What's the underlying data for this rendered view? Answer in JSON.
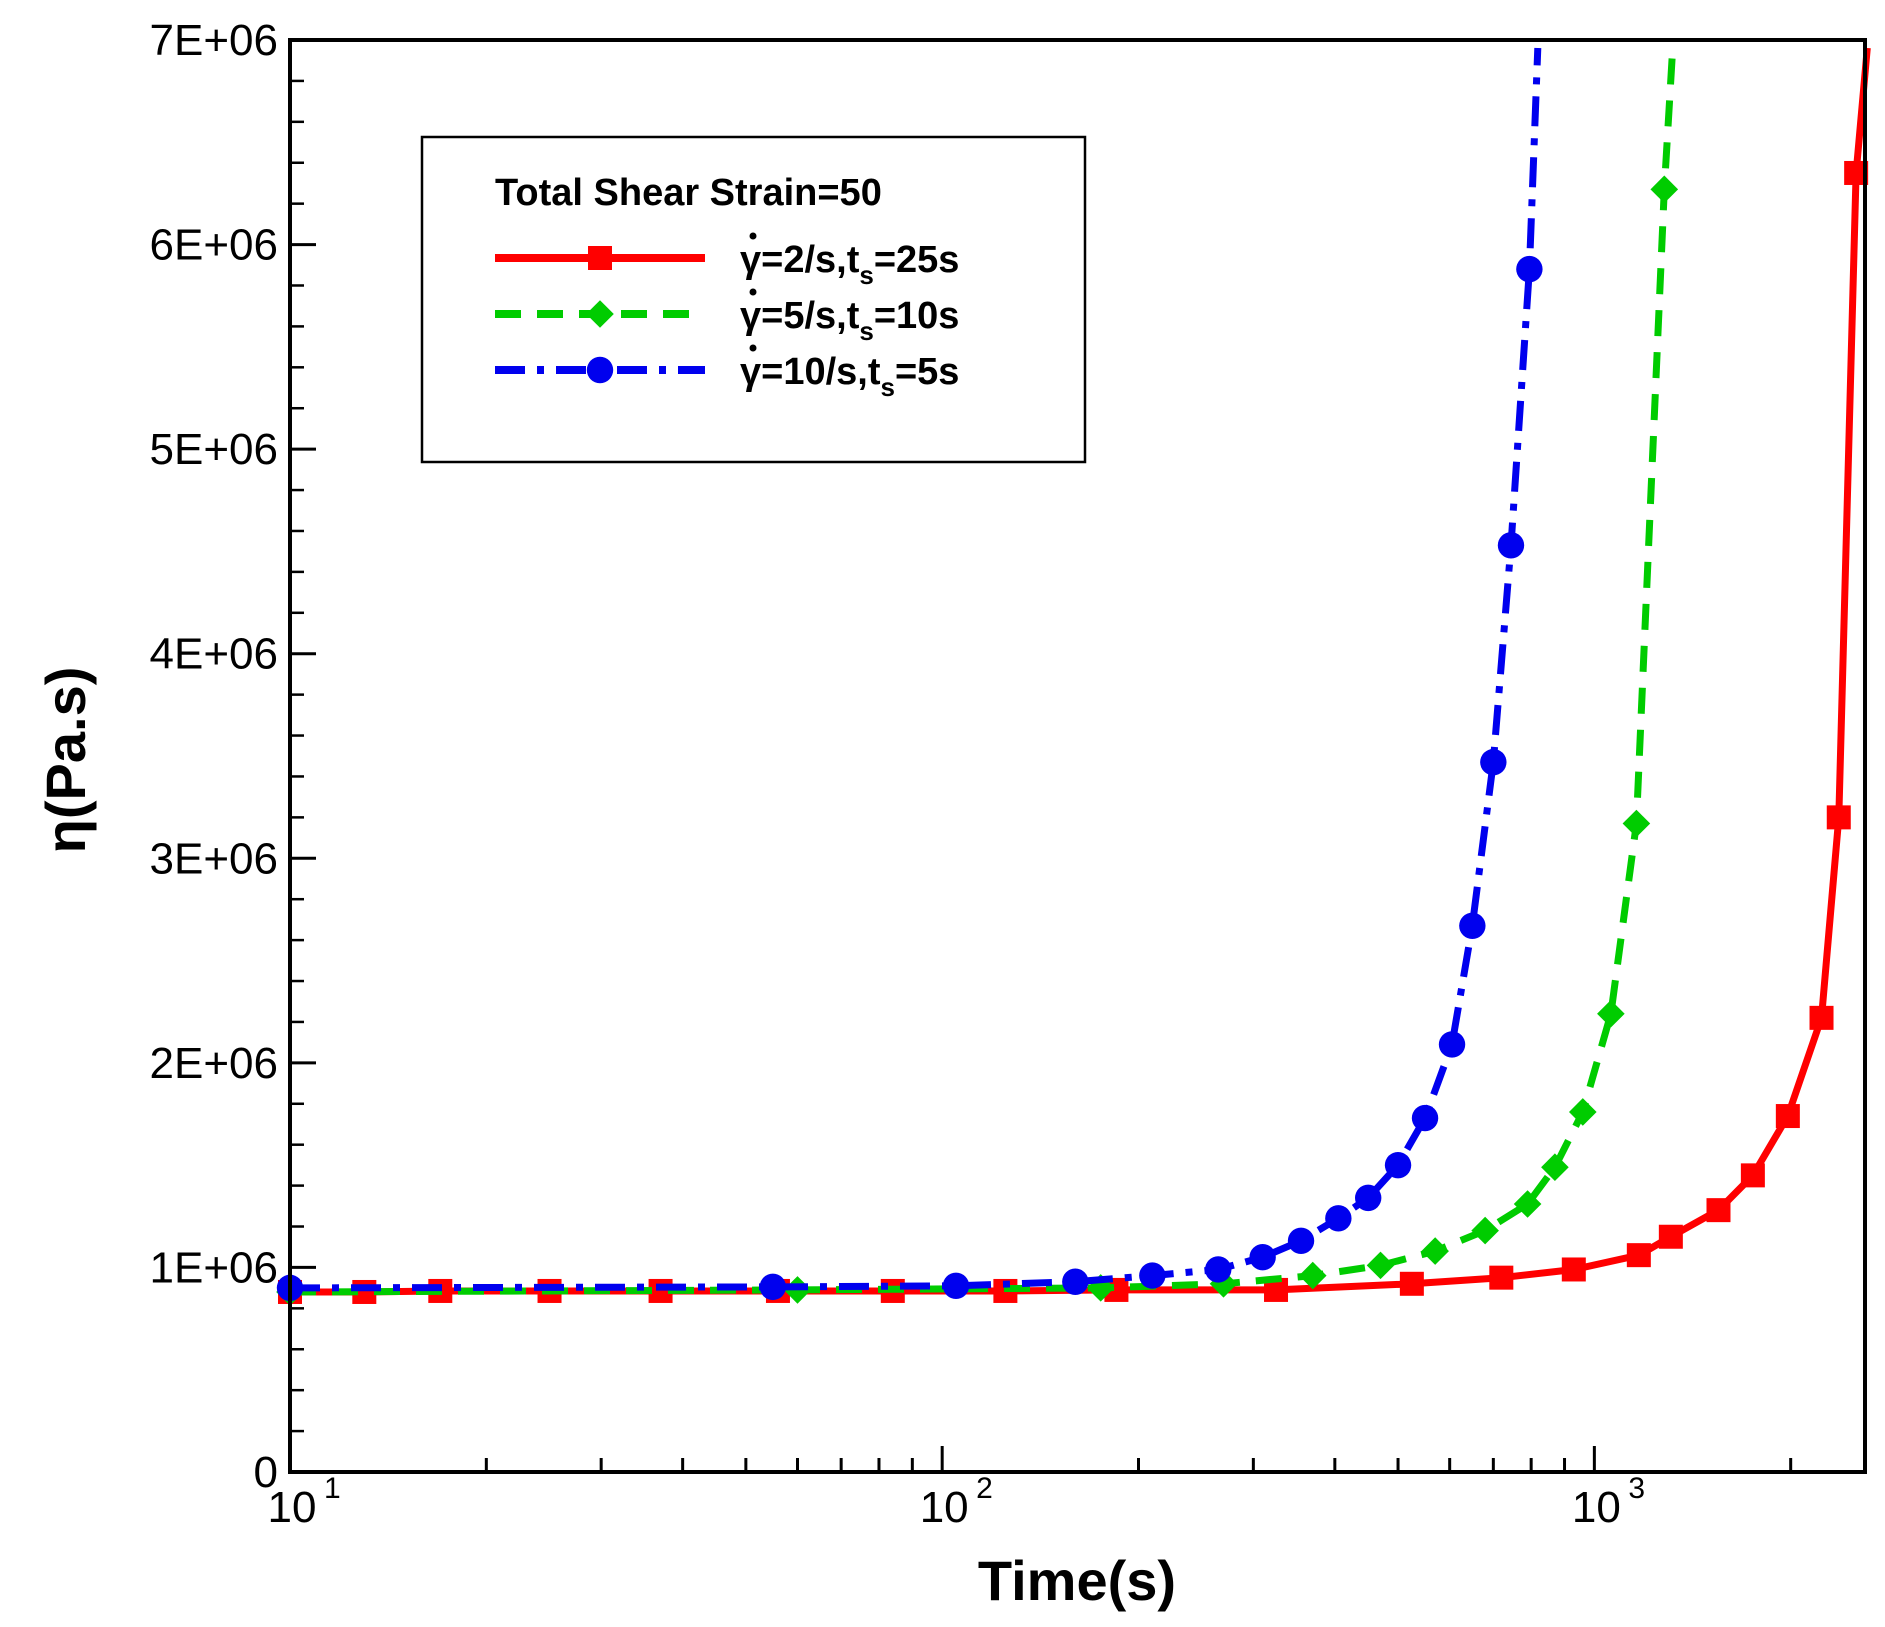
{
  "chart_data": {
    "type": "line",
    "title": "",
    "xlabel": "Time(s)",
    "ylabel": "η(Pa.s)",
    "xscale": "log",
    "xlim": [
      10,
      2600
    ],
    "ylim": [
      0,
      7000000
    ],
    "grid": false,
    "y_ticks": [
      0,
      1000000,
      2000000,
      3000000,
      4000000,
      5000000,
      6000000,
      7000000
    ],
    "y_tick_labels": [
      "0",
      "1E+06",
      "2E+06",
      "3E+06",
      "4E+06",
      "5E+06",
      "6E+06",
      "7E+06"
    ],
    "x_ticks": [
      10,
      100,
      1000
    ],
    "x_tick_base": "10",
    "x_tick_exponents": [
      "1",
      "2",
      "3"
    ],
    "legend": {
      "title": "Total Shear Strain=50",
      "placement": "top-left"
    },
    "series": [
      {
        "name": "γ̇=2/s,t_s=25s",
        "label_parts": {
          "gamma": "γ",
          "rate": "=2/s,t",
          "sub": "s",
          "rest": "=25s"
        },
        "color": "#ff0000",
        "dash": "solid",
        "marker": "square",
        "x": [
          10,
          13,
          17,
          25,
          37,
          56,
          84,
          125,
          185,
          325,
          525,
          720,
          930,
          1170,
          1310,
          1550,
          1750,
          1980,
          2230,
          2370,
          2520
        ],
        "y": [
          880000,
          880000,
          885000,
          885000,
          885000,
          885000,
          885000,
          885000,
          890000,
          890000,
          920000,
          950000,
          990000,
          1060000,
          1150000,
          1280000,
          1450000,
          1740000,
          2220000,
          3200000,
          6350000
        ]
      },
      {
        "name": "γ̇=5/s,t_s=10s",
        "label_parts": {
          "gamma": "γ",
          "rate": "=5/s,t",
          "sub": "s",
          "rest": "=10s"
        },
        "color": "#00cc00",
        "dash": "dashed",
        "marker": "diamond",
        "x": [
          10,
          60,
          175,
          270,
          370,
          470,
          570,
          680,
          790,
          870,
          960,
          1060,
          1160,
          1280
        ],
        "y": [
          880000,
          890000,
          900000,
          920000,
          960000,
          1010000,
          1080000,
          1180000,
          1310000,
          1490000,
          1760000,
          2240000,
          3170000,
          6270000
        ]
      },
      {
        "name": "γ̇=10/s,t_s=5s",
        "label_parts": {
          "gamma": "γ",
          "rate": "=10/s,t",
          "sub": "s",
          "rest": "=5s"
        },
        "color": "#0000ee",
        "dash": "dashdot",
        "marker": "circle",
        "x": [
          10,
          55,
          105,
          160,
          210,
          265,
          310,
          355,
          405,
          450,
          500,
          550,
          605,
          650,
          700,
          745,
          795
        ],
        "y": [
          900000,
          905000,
          910000,
          930000,
          960000,
          990000,
          1050000,
          1130000,
          1240000,
          1340000,
          1500000,
          1730000,
          2090000,
          2670000,
          3470000,
          4530000,
          5880000
        ]
      }
    ]
  }
}
